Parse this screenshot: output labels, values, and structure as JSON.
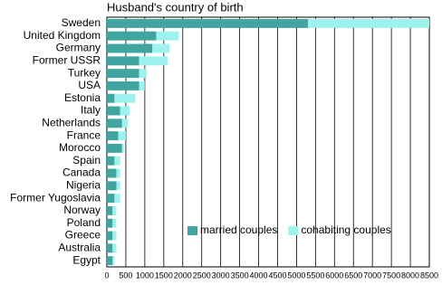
{
  "chart_data": {
    "type": "hbar-stacked",
    "title": "Husband's country of birth",
    "categories": [
      "Sweden",
      "United Kingdom",
      "Germany",
      "Former USSR",
      "Turkey",
      "USA",
      "Estonia",
      "Italy",
      "Netherlands",
      "France",
      "Morocco",
      "Spain",
      "Canada",
      "Nigeria",
      "Former Yugoslavia",
      "Norway",
      "Poland",
      "Greece",
      "Australia",
      "Egypt"
    ],
    "series": [
      {
        "name": "married couples",
        "color": "#40a5a0",
        "values": [
          5300,
          1300,
          1200,
          850,
          850,
          850,
          200,
          350,
          400,
          300,
          400,
          200,
          250,
          250,
          200,
          150,
          150,
          150,
          150,
          150
        ]
      },
      {
        "name": "cohabiting couples",
        "color": "#9df2ee",
        "values": [
          3200,
          600,
          450,
          750,
          200,
          150,
          550,
          250,
          150,
          200,
          50,
          150,
          100,
          100,
          150,
          100,
          100,
          100,
          100,
          50
        ]
      }
    ],
    "xlim": [
      0,
      8500
    ],
    "xticks": [
      0,
      500,
      1000,
      1500,
      2000,
      2500,
      3000,
      3500,
      4000,
      4500,
      5000,
      5500,
      6000,
      6500,
      7000,
      7500,
      8000,
      8500
    ],
    "grid": true,
    "legend": "lower right"
  }
}
